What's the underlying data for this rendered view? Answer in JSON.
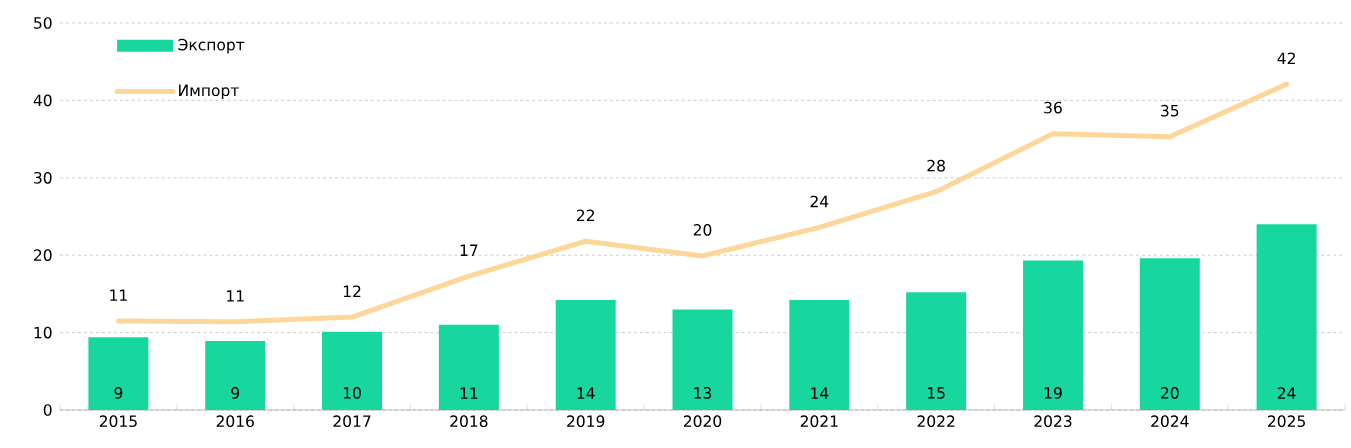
{
  "chart_data": {
    "type": "bar",
    "categories": [
      "2015",
      "2016",
      "2017",
      "2018",
      "2019",
      "2020",
      "2021",
      "2022",
      "2023",
      "2024",
      "2025"
    ],
    "series": [
      {
        "name": "Экспорт",
        "type": "bar",
        "color": "#17d79f",
        "values": [
          9.4,
          8.9,
          10.1,
          11.0,
          14.2,
          13.0,
          14.2,
          15.2,
          19.3,
          19.6,
          24.0
        ],
        "value_labels": [
          "9",
          "9",
          "10",
          "11",
          "14",
          "13",
          "14",
          "15",
          "19",
          "20",
          "24"
        ]
      },
      {
        "name": "Импорт",
        "type": "line",
        "color": "#fdd79a",
        "values": [
          11.5,
          11.4,
          12.0,
          17.3,
          21.8,
          19.9,
          23.6,
          28.2,
          35.7,
          35.3,
          42.1
        ],
        "value_labels": [
          "11",
          "11",
          "12",
          "17",
          "22",
          "20",
          "24",
          "28",
          "36",
          "35",
          "42"
        ]
      }
    ],
    "ylim": [
      0,
      50
    ],
    "yticks": [
      0,
      10,
      20,
      30,
      40,
      50
    ],
    "grid": "y",
    "legend": "top left"
  }
}
